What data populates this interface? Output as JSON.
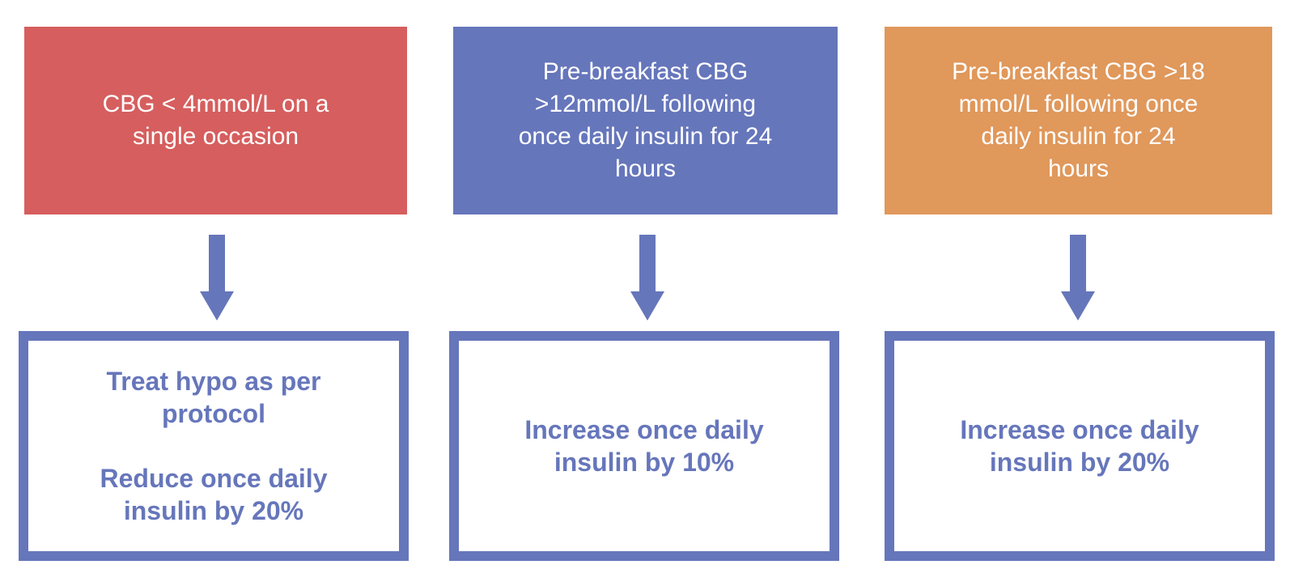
{
  "colors": {
    "coral_red": "#d65e5e",
    "periwinkle_blue": "#6676bb",
    "orange": "#e0985b",
    "box_fill": "#ffffff",
    "background": "#ffffff",
    "condition_text": "#ffffff",
    "action_text": "#6676bb",
    "arrow": "#6676bb",
    "action_border": "#6676bb"
  },
  "flowchart": {
    "columns": [
      {
        "condition_lines": [
          "CBG < 4mmol/L on a",
          "single occasion"
        ],
        "condition_color": "#d65e5e",
        "action_paragraphs": [
          [
            "Treat hypo as per",
            "protocol"
          ],
          [
            "Reduce once daily",
            "insulin by 20%"
          ]
        ]
      },
      {
        "condition_lines": [
          "Pre-breakfast CBG",
          ">12mmol/L following",
          "once daily insulin for 24",
          "hours"
        ],
        "condition_color": "#6676bb",
        "action_paragraphs": [
          [
            "Increase once daily",
            "insulin by 10%"
          ]
        ]
      },
      {
        "condition_lines": [
          "Pre-breakfast CBG >18",
          "mmol/L following once",
          "daily insulin for 24",
          "hours"
        ],
        "condition_color": "#e0985b",
        "action_paragraphs": [
          [
            "Increase once daily",
            "insulin by 20%"
          ]
        ]
      }
    ]
  }
}
